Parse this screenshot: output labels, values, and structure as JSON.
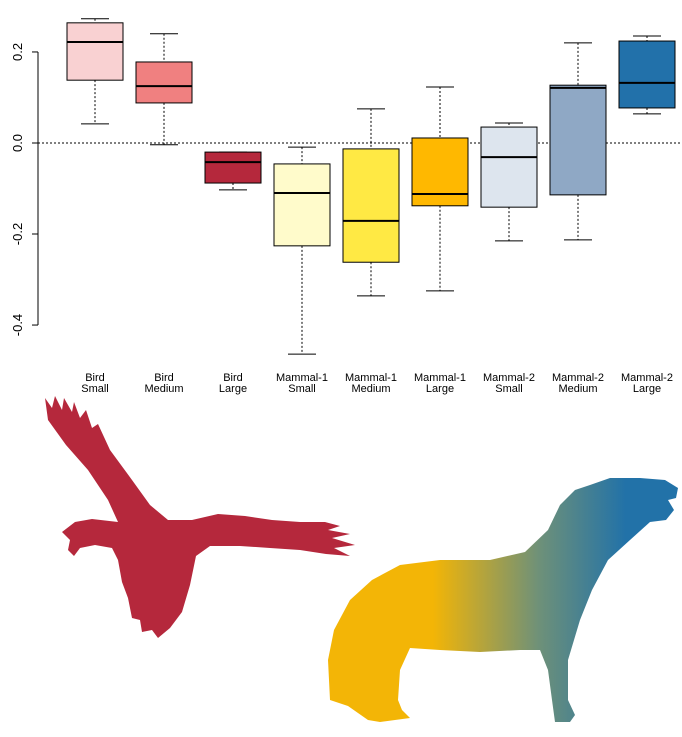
{
  "chart_data": {
    "type": "boxplot",
    "categories": [
      [
        "Bird",
        "Small"
      ],
      [
        "Bird",
        "Medium"
      ],
      [
        "Bird",
        "Large"
      ],
      [
        "Mammal-1",
        "Small"
      ],
      [
        "Mammal-1",
        "Medium"
      ],
      [
        "Mammal-1",
        "Large"
      ],
      [
        "Mammal-2",
        "Small"
      ],
      [
        "Mammal-2",
        "Medium"
      ],
      [
        "Mammal-2",
        "Large"
      ]
    ],
    "boxes": [
      {
        "whisker_low": 0.042,
        "q1": 0.138,
        "median": 0.222,
        "q3": 0.264,
        "whisker_high": 0.273,
        "color": "#f9d1d2"
      },
      {
        "whisker_low": -0.004,
        "q1": 0.088,
        "median": 0.125,
        "q3": 0.178,
        "whisker_high": 0.24,
        "color": "#f08080"
      },
      {
        "whisker_low": -0.103,
        "q1": -0.088,
        "median": -0.042,
        "q3": -0.02,
        "whisker_high": -0.02,
        "color": "#b5283c"
      },
      {
        "whisker_low": -0.464,
        "q1": -0.226,
        "median": -0.11,
        "q3": -0.046,
        "whisker_high": -0.009,
        "color": "#fffbcb"
      },
      {
        "whisker_low": -0.336,
        "q1": -0.262,
        "median": -0.171,
        "q3": -0.013,
        "whisker_high": 0.075,
        "color": "#ffe944"
      },
      {
        "whisker_low": -0.325,
        "q1": -0.138,
        "median": -0.112,
        "q3": 0.011,
        "whisker_high": 0.123,
        "color": "#ffb800"
      },
      {
        "whisker_low": -0.215,
        "q1": -0.141,
        "median": -0.031,
        "q3": 0.035,
        "whisker_high": 0.044,
        "color": "#dde5ee"
      },
      {
        "whisker_low": -0.213,
        "q1": -0.114,
        "median": 0.121,
        "q3": 0.127,
        "whisker_high": 0.22,
        "color": "#8fa8c5"
      },
      {
        "whisker_low": 0.064,
        "q1": 0.077,
        "median": 0.132,
        "q3": 0.224,
        "whisker_high": 0.235,
        "color": "#2271aa"
      }
    ],
    "ylim": [
      -0.49,
      0.29
    ],
    "yticks": [
      {
        "value": -0.4,
        "label": "-0.4"
      },
      {
        "value": -0.2,
        "label": "-0.2"
      },
      {
        "value": 0,
        "label": "0.0"
      },
      {
        "value": 0.2,
        "label": "0.2"
      }
    ],
    "reference_line": 0
  }
}
